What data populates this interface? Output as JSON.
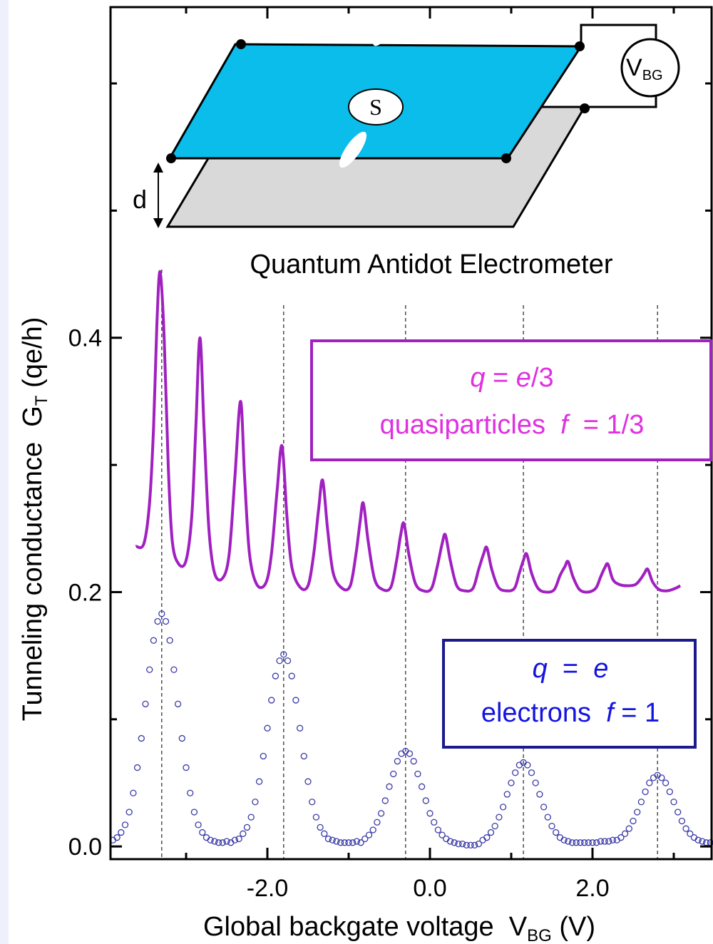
{
  "chart_data": {
    "type": "line",
    "x_label": [
      "Global backgate voltage  V",
      "BG",
      " (V)"
    ],
    "y_label": [
      "Tunneling conductance  G",
      "T",
      " (qe/h)"
    ],
    "xlim": [
      -3.93,
      3.465
    ],
    "ylim": [
      -0.01,
      0.66
    ],
    "xticks": [
      {
        "value": -2,
        "label": "-2.0"
      },
      {
        "value": 0,
        "label": "0.0"
      },
      {
        "value": 2,
        "label": "2.0"
      }
    ],
    "minor_xticks": [
      -3,
      -1,
      1,
      3
    ],
    "yticks": [
      {
        "value": 0,
        "label": "0.0"
      },
      {
        "value": 0.2,
        "label": "0.2"
      },
      {
        "value": 0.4,
        "label": "0.4"
      }
    ],
    "minor_yticks": [
      0.1,
      0.3,
      0.5,
      0.6
    ],
    "guide_lines": [
      -3.3,
      -1.8,
      -0.3,
      1.15,
      2.8
    ],
    "series": [
      {
        "color": "#a020c0",
        "marker": "line",
        "x": [
          -3.62,
          -3.52,
          -3.45,
          -3.4,
          -3.36,
          -3.32,
          -3.27,
          -3.22,
          -3.17,
          -3.09,
          -3.0,
          -2.93,
          -2.88,
          -2.83,
          -2.78,
          -2.72,
          -2.65,
          -2.55,
          -2.47,
          -2.4,
          -2.33,
          -2.28,
          -2.22,
          -2.13,
          -2.02,
          -1.95,
          -1.88,
          -1.82,
          -1.76,
          -1.7,
          -1.6,
          -1.5,
          -1.43,
          -1.37,
          -1.32,
          -1.26,
          -1.19,
          -1.08,
          -0.98,
          -0.91,
          -0.86,
          -0.82,
          -0.76,
          -0.68,
          -0.58,
          -0.48,
          -0.41,
          -0.36,
          -0.32,
          -0.26,
          -0.18,
          -0.08,
          0.02,
          0.09,
          0.15,
          0.19,
          0.25,
          0.33,
          0.43,
          0.53,
          0.6,
          0.66,
          0.7,
          0.76,
          0.84,
          0.94,
          1.04,
          1.1,
          1.15,
          1.19,
          1.25,
          1.33,
          1.43,
          1.53,
          1.6,
          1.66,
          1.7,
          1.76,
          1.84,
          1.94,
          2.04,
          2.1,
          2.15,
          2.19,
          2.25,
          2.33,
          2.43,
          2.53,
          2.6,
          2.64,
          2.68,
          2.74,
          2.82,
          2.92,
          3.02,
          3.08
        ],
        "values": [
          0.236,
          0.238,
          0.27,
          0.33,
          0.41,
          0.452,
          0.4,
          0.3,
          0.24,
          0.222,
          0.225,
          0.26,
          0.33,
          0.4,
          0.33,
          0.25,
          0.215,
          0.211,
          0.23,
          0.29,
          0.35,
          0.29,
          0.23,
          0.206,
          0.207,
          0.23,
          0.28,
          0.315,
          0.26,
          0.22,
          0.204,
          0.205,
          0.23,
          0.265,
          0.288,
          0.25,
          0.215,
          0.203,
          0.205,
          0.23,
          0.255,
          0.27,
          0.24,
          0.21,
          0.202,
          0.204,
          0.225,
          0.245,
          0.254,
          0.23,
          0.207,
          0.201,
          0.203,
          0.22,
          0.238,
          0.245,
          0.225,
          0.205,
          0.201,
          0.203,
          0.218,
          0.23,
          0.235,
          0.218,
          0.204,
          0.201,
          0.203,
          0.215,
          0.225,
          0.23,
          0.215,
          0.203,
          0.2,
          0.202,
          0.213,
          0.22,
          0.224,
          0.212,
          0.202,
          0.2,
          0.203,
          0.212,
          0.219,
          0.222,
          0.21,
          0.206,
          0.205,
          0.206,
          0.211,
          0.215,
          0.218,
          0.208,
          0.202,
          0.201,
          0.203,
          0.205
        ]
      },
      {
        "color": "#3a3aa8",
        "marker": "circle",
        "x": [
          -3.9,
          -3.85,
          -3.8,
          -3.75,
          -3.7,
          -3.65,
          -3.6,
          -3.55,
          -3.5,
          -3.45,
          -3.4,
          -3.35,
          -3.3,
          -3.25,
          -3.2,
          -3.15,
          -3.1,
          -3.05,
          -3.0,
          -2.95,
          -2.9,
          -2.85,
          -2.8,
          -2.75,
          -2.7,
          -2.65,
          -2.6,
          -2.55,
          -2.5,
          -2.45,
          -2.4,
          -2.35,
          -2.3,
          -2.25,
          -2.2,
          -2.15,
          -2.1,
          -2.05,
          -2.0,
          -1.95,
          -1.9,
          -1.85,
          -1.8,
          -1.75,
          -1.7,
          -1.65,
          -1.6,
          -1.55,
          -1.5,
          -1.45,
          -1.4,
          -1.35,
          -1.3,
          -1.25,
          -1.2,
          -1.15,
          -1.1,
          -1.05,
          -1.0,
          -0.95,
          -0.9,
          -0.85,
          -0.8,
          -0.75,
          -0.7,
          -0.65,
          -0.6,
          -0.55,
          -0.5,
          -0.45,
          -0.4,
          -0.35,
          -0.3,
          -0.25,
          -0.2,
          -0.15,
          -0.1,
          -0.05,
          0.0,
          0.05,
          0.1,
          0.15,
          0.2,
          0.25,
          0.3,
          0.35,
          0.4,
          0.45,
          0.5,
          0.55,
          0.6,
          0.65,
          0.7,
          0.75,
          0.8,
          0.85,
          0.9,
          0.95,
          1.0,
          1.05,
          1.1,
          1.15,
          1.2,
          1.25,
          1.3,
          1.35,
          1.4,
          1.45,
          1.5,
          1.55,
          1.6,
          1.65,
          1.7,
          1.75,
          1.8,
          1.85,
          1.9,
          1.95,
          2.0,
          2.05,
          2.1,
          2.15,
          2.2,
          2.25,
          2.3,
          2.35,
          2.4,
          2.45,
          2.5,
          2.55,
          2.6,
          2.65,
          2.7,
          2.75,
          2.8,
          2.85,
          2.9,
          2.95,
          3.0,
          3.05,
          3.1,
          3.15,
          3.2,
          3.25,
          3.3,
          3.35,
          3.4,
          3.45
        ],
        "values": [
          0.005,
          0.007,
          0.011,
          0.017,
          0.027,
          0.042,
          0.062,
          0.085,
          0.112,
          0.139,
          0.162,
          0.177,
          0.183,
          0.177,
          0.162,
          0.139,
          0.112,
          0.085,
          0.062,
          0.042,
          0.027,
          0.017,
          0.011,
          0.007,
          0.005,
          0.004,
          0.003,
          0.003,
          0.004,
          0.003,
          0.005,
          0.006,
          0.01,
          0.015,
          0.023,
          0.035,
          0.051,
          0.071,
          0.093,
          0.115,
          0.134,
          0.146,
          0.151,
          0.146,
          0.134,
          0.115,
          0.093,
          0.071,
          0.051,
          0.035,
          0.023,
          0.015,
          0.01,
          0.006,
          0.005,
          0.004,
          0.003,
          0.003,
          0.003,
          0.003,
          0.004,
          0.003,
          0.006,
          0.009,
          0.013,
          0.019,
          0.026,
          0.036,
          0.047,
          0.057,
          0.067,
          0.073,
          0.075,
          0.073,
          0.067,
          0.057,
          0.047,
          0.036,
          0.026,
          0.019,
          0.013,
          0.009,
          0.006,
          0.004,
          0.003,
          0.002,
          0.002,
          0.001,
          0.001,
          0.001,
          0.002,
          0.005,
          0.007,
          0.011,
          0.016,
          0.023,
          0.031,
          0.041,
          0.05,
          0.058,
          0.064,
          0.066,
          0.064,
          0.058,
          0.05,
          0.041,
          0.031,
          0.023,
          0.016,
          0.011,
          0.007,
          0.005,
          0.004,
          0.003,
          0.003,
          0.003,
          0.003,
          0.003,
          0.003,
          0.003,
          0.004,
          0.004,
          0.004,
          0.005,
          0.005,
          0.007,
          0.01,
          0.014,
          0.02,
          0.027,
          0.035,
          0.043,
          0.05,
          0.054,
          0.056,
          0.054,
          0.05,
          0.043,
          0.035,
          0.027,
          0.02,
          0.014,
          0.01,
          0.007,
          0.005,
          0.004,
          0.003,
          0.003
        ]
      }
    ],
    "annotations": [
      {
        "color": "#e030e0",
        "border": "#a020c0",
        "lines": [
          [
            {
              "text": "q",
              "italic": true
            },
            {
              "text": " = "
            },
            {
              "text": "e",
              "italic": true
            },
            {
              "text": "/3"
            }
          ],
          [
            {
              "text": "quasiparticles  "
            },
            {
              "text": "f",
              "italic": true
            },
            {
              "text": "  = 1/3"
            }
          ]
        ]
      },
      {
        "color": "#1414e0",
        "border": "#1a1a8c",
        "lines": [
          [
            {
              "text": "q",
              "italic": true
            },
            {
              "text": "  =  "
            },
            {
              "text": "e",
              "italic": true
            }
          ],
          [
            {
              "text": "electrons  "
            },
            {
              "text": "f",
              "italic": true
            },
            {
              "text": " = 1"
            }
          ]
        ]
      }
    ],
    "schematic": {
      "title": "Quantum Antidot Electrometer",
      "source": "S",
      "meter": [
        "V",
        "BG"
      ],
      "gap": "d"
    }
  }
}
